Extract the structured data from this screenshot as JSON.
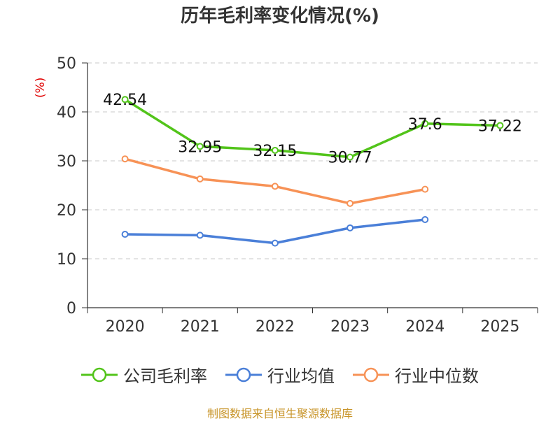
{
  "title": "历年毛利率变化情况(%)",
  "unit_label": "(%)",
  "source": "制图数据来自恒生聚源数据库",
  "chart_data": {
    "type": "line",
    "title": "历年毛利率变化情况(%)",
    "ylabel": "(%)",
    "xlabel": "",
    "x": [
      "2020",
      "2021",
      "2022",
      "2023",
      "2024",
      "2025"
    ],
    "ylim": [
      0,
      50
    ],
    "yticks": [
      0,
      10,
      20,
      30,
      40,
      50
    ],
    "grid": true,
    "legend": "bottom",
    "series": [
      {
        "name": "公司毛利率",
        "color": "#52c41a",
        "values": [
          42.54,
          32.95,
          32.15,
          30.77,
          37.6,
          37.22
        ],
        "labels": [
          "42.54",
          "32.95",
          "32.15",
          "30.77",
          "37.6",
          "37.22"
        ]
      },
      {
        "name": "行业均值",
        "color": "#4a7fd8",
        "values": [
          15.0,
          14.8,
          13.2,
          16.3,
          18.0,
          null
        ],
        "labels": []
      },
      {
        "name": "行业中位数",
        "color": "#f79256",
        "values": [
          30.4,
          26.3,
          24.8,
          21.3,
          24.2,
          null
        ],
        "labels": []
      }
    ]
  }
}
